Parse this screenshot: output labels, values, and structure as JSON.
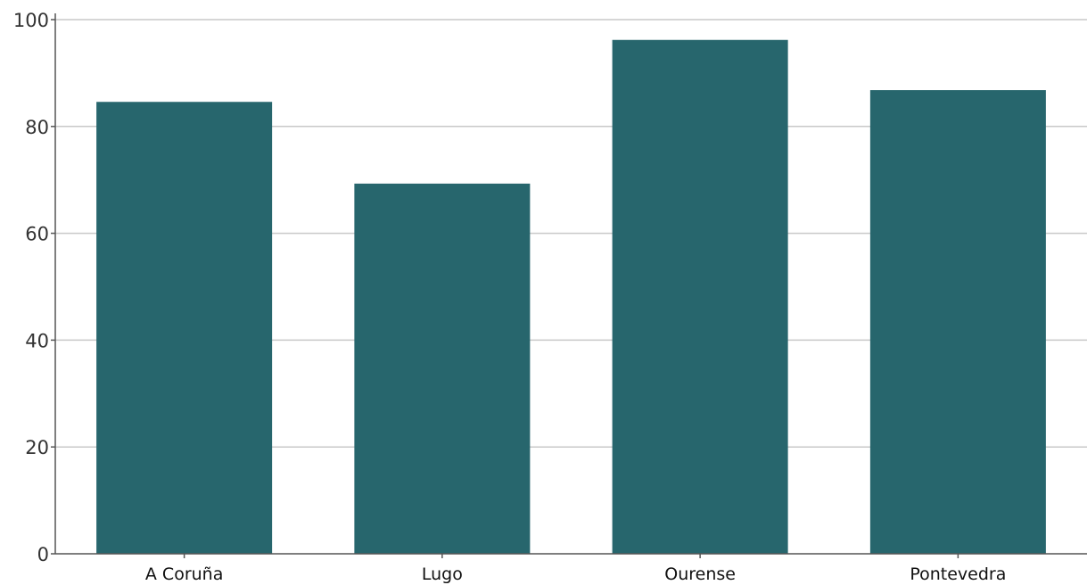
{
  "chart_data": {
    "type": "bar",
    "categories": [
      "A Coruña",
      "Lugo",
      "Ourense",
      "Pontevedra"
    ],
    "values": [
      84.6,
      69.3,
      96.2,
      86.8
    ],
    "title": "",
    "xlabel": "",
    "ylabel": "",
    "ylim": [
      0,
      100
    ],
    "yticks": [
      "0",
      "20",
      "40",
      "60",
      "80",
      "100"
    ],
    "grid": true,
    "legend": "none",
    "bar_color": "#27666d"
  }
}
